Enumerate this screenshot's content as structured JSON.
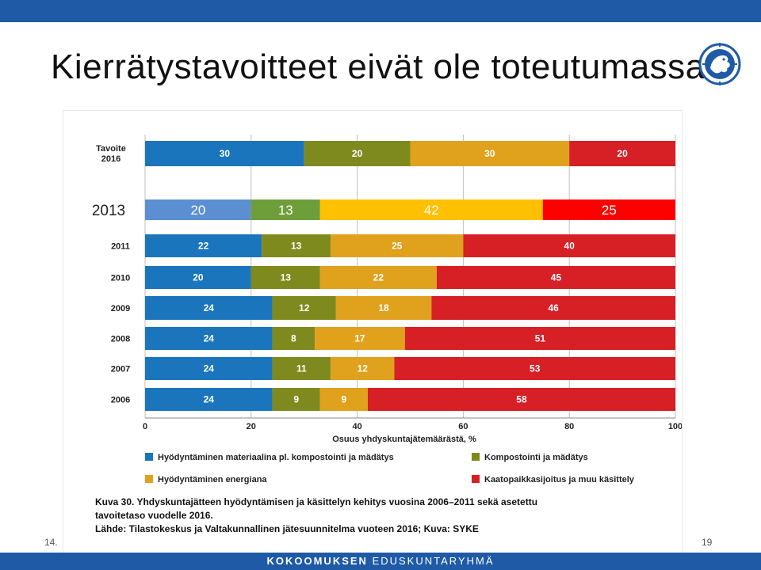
{
  "slide": {
    "title": "Kierrätystavoitteet eivät ole toteutumassa",
    "date": "14.",
    "page_number": "19",
    "footer_brand_bold": "KOKOOMUKSEN",
    "footer_brand_regular": "EDUSKUNTARYHMÄ"
  },
  "colors": {
    "bar_top": "#1f5aa6",
    "material": "#1a75bc",
    "material_2013": "#5b8fd1",
    "compost": "#7f8a1e",
    "compost_2013": "#6e9e3a",
    "energy": "#e0a11d",
    "energy_2013": "#ffc000",
    "landfill": "#d71f26",
    "landfill_2013": "#ff0000"
  },
  "chart_data": {
    "type": "bar",
    "orientation": "horizontal",
    "stacked": true,
    "categories": [
      "Tavoite 2016",
      "2013",
      "2011",
      "2010",
      "2009",
      "2008",
      "2007",
      "2006"
    ],
    "series": [
      {
        "name": "Hyödyntäminen materiaalina pl. kompostointi ja mädätys",
        "values": [
          30,
          20,
          22,
          20,
          24,
          24,
          24,
          24
        ]
      },
      {
        "name": "Kompostointi ja mädätys",
        "values": [
          20,
          13,
          13,
          13,
          12,
          8,
          11,
          9
        ]
      },
      {
        "name": "Hyödyntäminen energiana",
        "values": [
          30,
          42,
          25,
          22,
          18,
          17,
          12,
          9
        ]
      },
      {
        "name": "Kaatopaikkasijoitus ja muu käsittely",
        "values": [
          20,
          25,
          40,
          45,
          46,
          51,
          53,
          58
        ]
      }
    ],
    "xlabel": "Osuus yhdyskuntajätemäärästä, %",
    "xlim": [
      0,
      100
    ],
    "xticks": [
      0,
      20,
      40,
      60,
      80,
      100
    ],
    "grid": true,
    "legend_position": "bottom",
    "caption_lines": [
      "Kuva 30. Yhdyskuntajätteen hyödyntämisen ja käsittelyn kehitys vuosina 2006–2011 sekä asetettu",
      "tavoitetaso vuodelle 2016.",
      "Lähde: Tilastokeskus ja Valtakunnallinen jätesuunnitelma vuoteen 2016; Kuva: SYKE"
    ]
  }
}
